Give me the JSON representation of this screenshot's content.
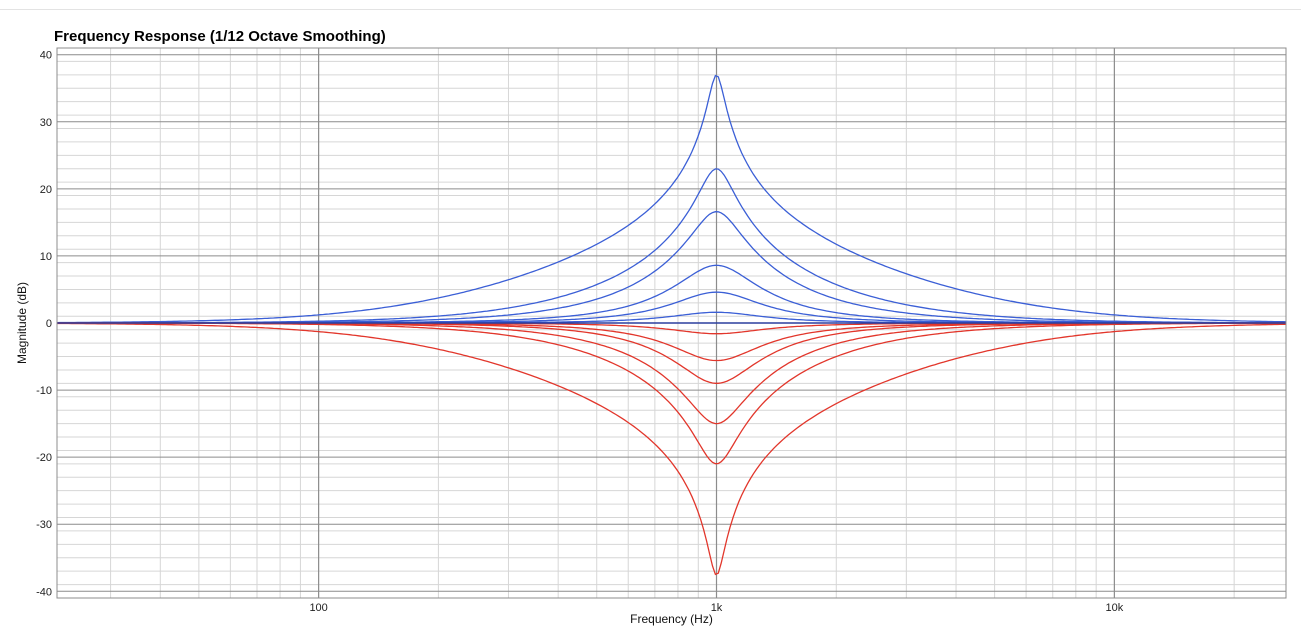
{
  "chart_data": {
    "type": "line",
    "title": "Frequency Response (1/12 Octave Smoothing)",
    "xlabel": "Frequency (Hz)",
    "ylabel": "Magnitude (dB)",
    "x_scale": "log",
    "xlim": [
      22,
      27000
    ],
    "ylim": [
      -41,
      41
    ],
    "x_ticks": [
      {
        "value": 100,
        "label": "100"
      },
      {
        "value": 1000,
        "label": "1k"
      },
      {
        "value": 10000,
        "label": "10k"
      }
    ],
    "y_ticks": [
      {
        "value": 40,
        "label": "40"
      },
      {
        "value": 30,
        "label": "30"
      },
      {
        "value": 20,
        "label": "20"
      },
      {
        "value": 10,
        "label": "10"
      },
      {
        "value": 0,
        "label": "0"
      },
      {
        "value": -10,
        "label": "-10"
      },
      {
        "value": -20,
        "label": "-20"
      },
      {
        "value": -30,
        "label": "-30"
      },
      {
        "value": -40,
        "label": "-40"
      }
    ],
    "grid": true,
    "center_frequency_hz": 1000,
    "colors": {
      "boost": "#3b5fd6",
      "cut": "#e2362b",
      "grid_major": "#8c8c8c",
      "grid_minor": "#d6d6d6"
    },
    "series": [
      {
        "group": "boost",
        "peak_gain_db": 18.5
      },
      {
        "group": "boost",
        "peak_gain_db": 11.5
      },
      {
        "group": "boost",
        "peak_gain_db": 8.3
      },
      {
        "group": "boost",
        "peak_gain_db": 4.3
      },
      {
        "group": "boost",
        "peak_gain_db": 2.3
      },
      {
        "group": "boost",
        "peak_gain_db": 0.8
      },
      {
        "group": "cut",
        "peak_gain_db": -0.8
      },
      {
        "group": "cut",
        "peak_gain_db": -2.8
      },
      {
        "group": "cut",
        "peak_gain_db": -4.5
      },
      {
        "group": "cut",
        "peak_gain_db": -7.5
      },
      {
        "group": "cut",
        "peak_gain_db": -10.5
      },
      {
        "group": "cut",
        "peak_gain_db": -18.8
      }
    ]
  }
}
